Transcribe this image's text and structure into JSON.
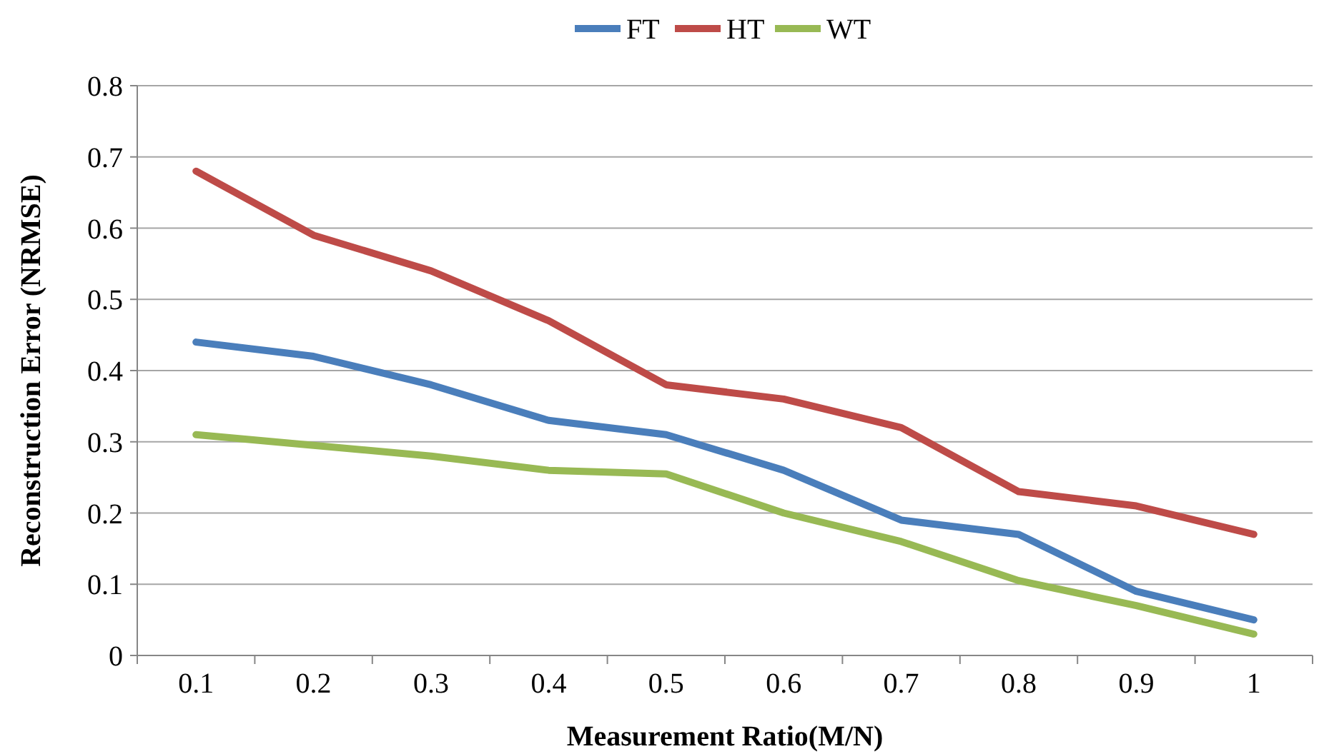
{
  "chart_data": {
    "type": "line",
    "xlabel": "Measurement Ratio(M/N)",
    "ylabel": "Reconstruction Error (NRMSE)",
    "categories": [
      "0.1",
      "0.2",
      "0.3",
      "0.4",
      "0.5",
      "0.6",
      "0.7",
      "0.8",
      "0.9",
      "1"
    ],
    "series": [
      {
        "name": "FT",
        "color": "#4a7ebb",
        "values": [
          0.44,
          0.42,
          0.38,
          0.33,
          0.31,
          0.26,
          0.19,
          0.17,
          0.09,
          0.05
        ]
      },
      {
        "name": "HT",
        "color": "#be4b48",
        "values": [
          0.68,
          0.59,
          0.54,
          0.47,
          0.38,
          0.36,
          0.32,
          0.23,
          0.21,
          0.17
        ]
      },
      {
        "name": "WT",
        "color": "#98b954",
        "values": [
          0.31,
          0.295,
          0.28,
          0.26,
          0.255,
          0.2,
          0.16,
          0.105,
          0.07,
          0.03
        ]
      }
    ],
    "ylim": [
      0,
      0.8
    ],
    "yticks": [
      0,
      0.1,
      0.2,
      0.3,
      0.4,
      0.5,
      0.6,
      0.7,
      0.8
    ],
    "grid": "y",
    "legend": "top",
    "marker": "none",
    "line_style": "solid"
  }
}
